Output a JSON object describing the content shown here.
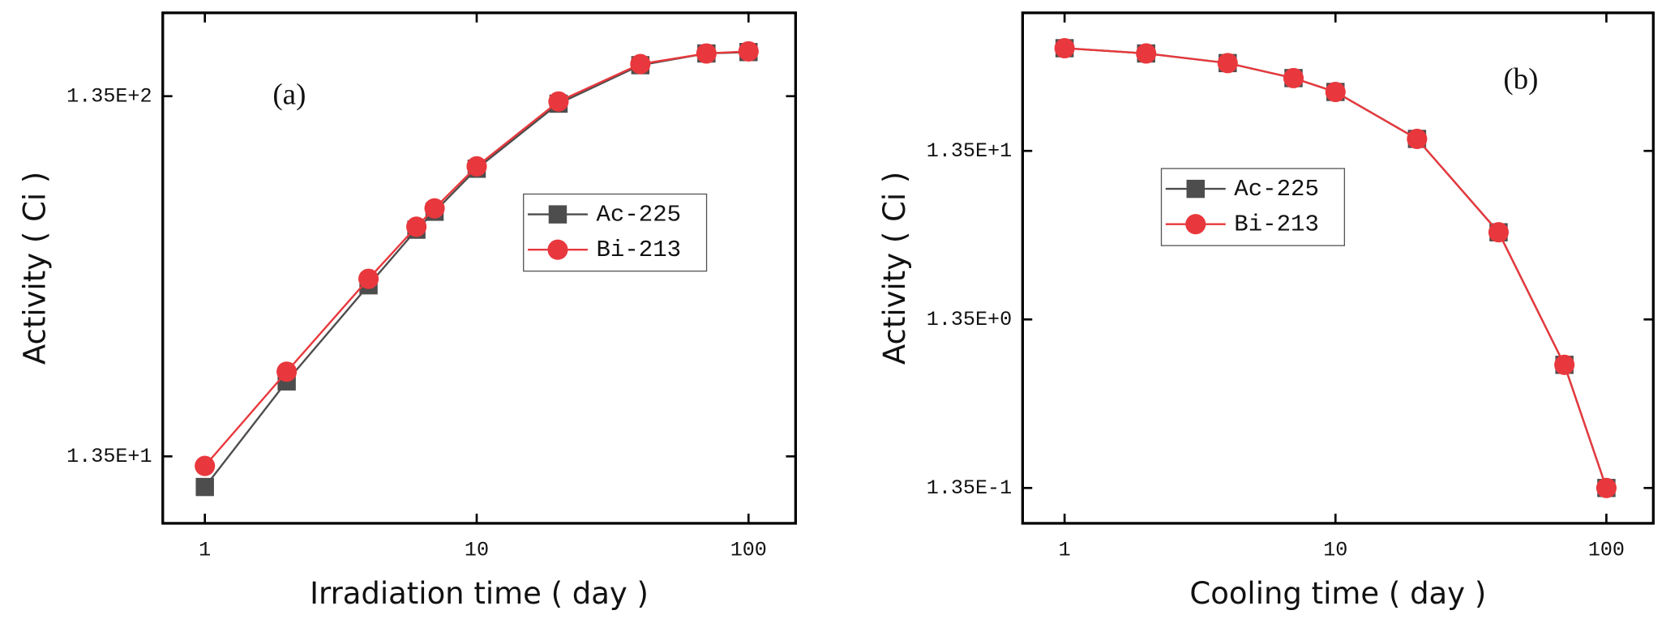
{
  "chart_data": [
    {
      "type": "line",
      "annotation": "(a)",
      "x_label": "Irradiation time ( day )",
      "y_label": "Activity ( Ci )",
      "log_x": true,
      "log_y": true,
      "legend": "center right",
      "xlim": [
        0.7,
        149
      ],
      "ylim": [
        8.8,
        230
      ],
      "xticks": [
        1,
        10,
        100
      ],
      "yticks": [
        {
          "value": 13.5,
          "label": "1.35E+1"
        },
        {
          "value": 135,
          "label": "1.35E+2"
        }
      ],
      "x": [
        1,
        2,
        4,
        6,
        7,
        10,
        20,
        40,
        70,
        100
      ],
      "series": [
        {
          "name": "Ac-225",
          "color": "#4d4d4d",
          "marker": "square",
          "values": [
            11.1,
            21.8,
            40.3,
            57.5,
            64.5,
            84.9,
            128.7,
            164.6,
            177.4,
            179
          ]
        },
        {
          "name": "Bi-213",
          "color": "#e8383d",
          "marker": "circle",
          "values": [
            12.7,
            23.2,
            42.0,
            58.6,
            65.9,
            86.2,
            130.5,
            165.8,
            177.4,
            179.8
          ]
        }
      ]
    },
    {
      "type": "line",
      "annotation": "(b)",
      "x_label": "Cooling time ( day )",
      "y_label": "Activity ( Ci )",
      "log_x": true,
      "log_y": true,
      "legend": "center left",
      "xlim": [
        0.7,
        149
      ],
      "ylim": [
        0.0833,
        89
      ],
      "xticks": [
        1,
        10,
        100
      ],
      "yticks": [
        {
          "value": 0.135,
          "label": "1.35E-1"
        },
        {
          "value": 1.35,
          "label": "1.35E+0"
        },
        {
          "value": 13.5,
          "label": "1.35E+1"
        }
      ],
      "x": [
        1,
        2,
        4,
        7,
        10,
        20,
        40,
        70,
        100
      ],
      "series": [
        {
          "name": "Ac-225",
          "color": "#4d4d4d",
          "marker": "square",
          "values": [
            54.9,
            51.1,
            44.8,
            36.5,
            30.2,
            15.9,
            4.44,
            0.726,
            0.135
          ]
        },
        {
          "name": "Bi-213",
          "color": "#e8383d",
          "marker": "circle",
          "values": [
            54.9,
            51.1,
            44.8,
            36.5,
            30.2,
            15.9,
            4.44,
            0.726,
            0.135
          ]
        }
      ]
    }
  ]
}
